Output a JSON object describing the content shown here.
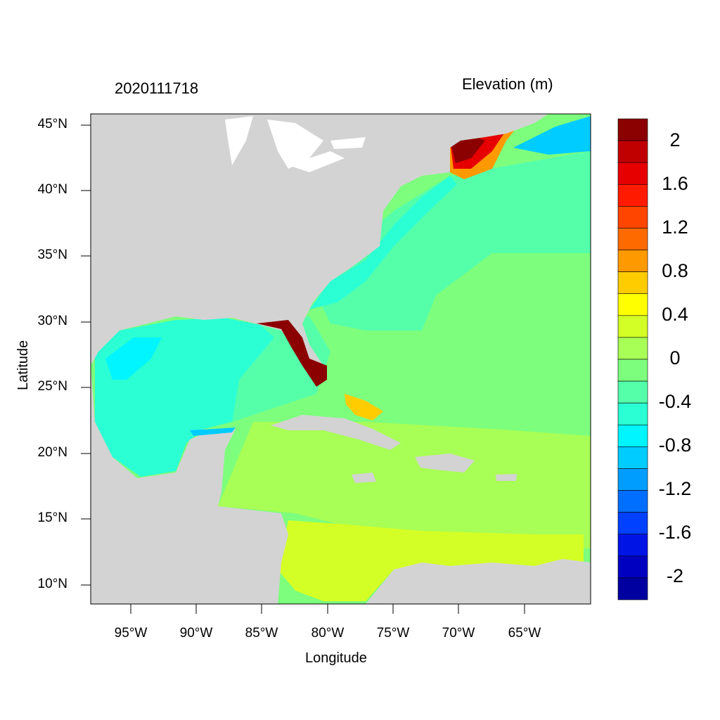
{
  "titles": {
    "left": "2020111718",
    "right": "Elevation (m)"
  },
  "axes": {
    "xlabel": "Longitude",
    "ylabel": "Latitude",
    "xticks": [
      "95°W",
      "90°W",
      "85°W",
      "80°W",
      "75°W",
      "70°W",
      "65°W"
    ],
    "yticks": [
      "45°N",
      "40°N",
      "35°N",
      "30°N",
      "25°N",
      "20°N",
      "15°N",
      "10°N"
    ]
  },
  "colorbar": {
    "labels": [
      "2",
      "1.6",
      "1.2",
      "0.8",
      "0.4",
      "0",
      "-0.4",
      "-0.8",
      "-1.2",
      "-1.6",
      "-2"
    ],
    "colors_top_to_bottom": [
      "#8b0000",
      "#c00000",
      "#e60000",
      "#ff1a00",
      "#ff4500",
      "#ff6a00",
      "#ff9900",
      "#ffcc00",
      "#ffff00",
      "#d4ff26",
      "#a8ff55",
      "#7dff7d",
      "#55ffaa",
      "#2bffd4",
      "#00f5ff",
      "#00ccff",
      "#009dff",
      "#006eff",
      "#0040ff",
      "#0014e6",
      "#0000c0",
      "#0000a0"
    ]
  },
  "colors": {
    "land": "#d3d3d3",
    "background": "#ffffff"
  }
}
